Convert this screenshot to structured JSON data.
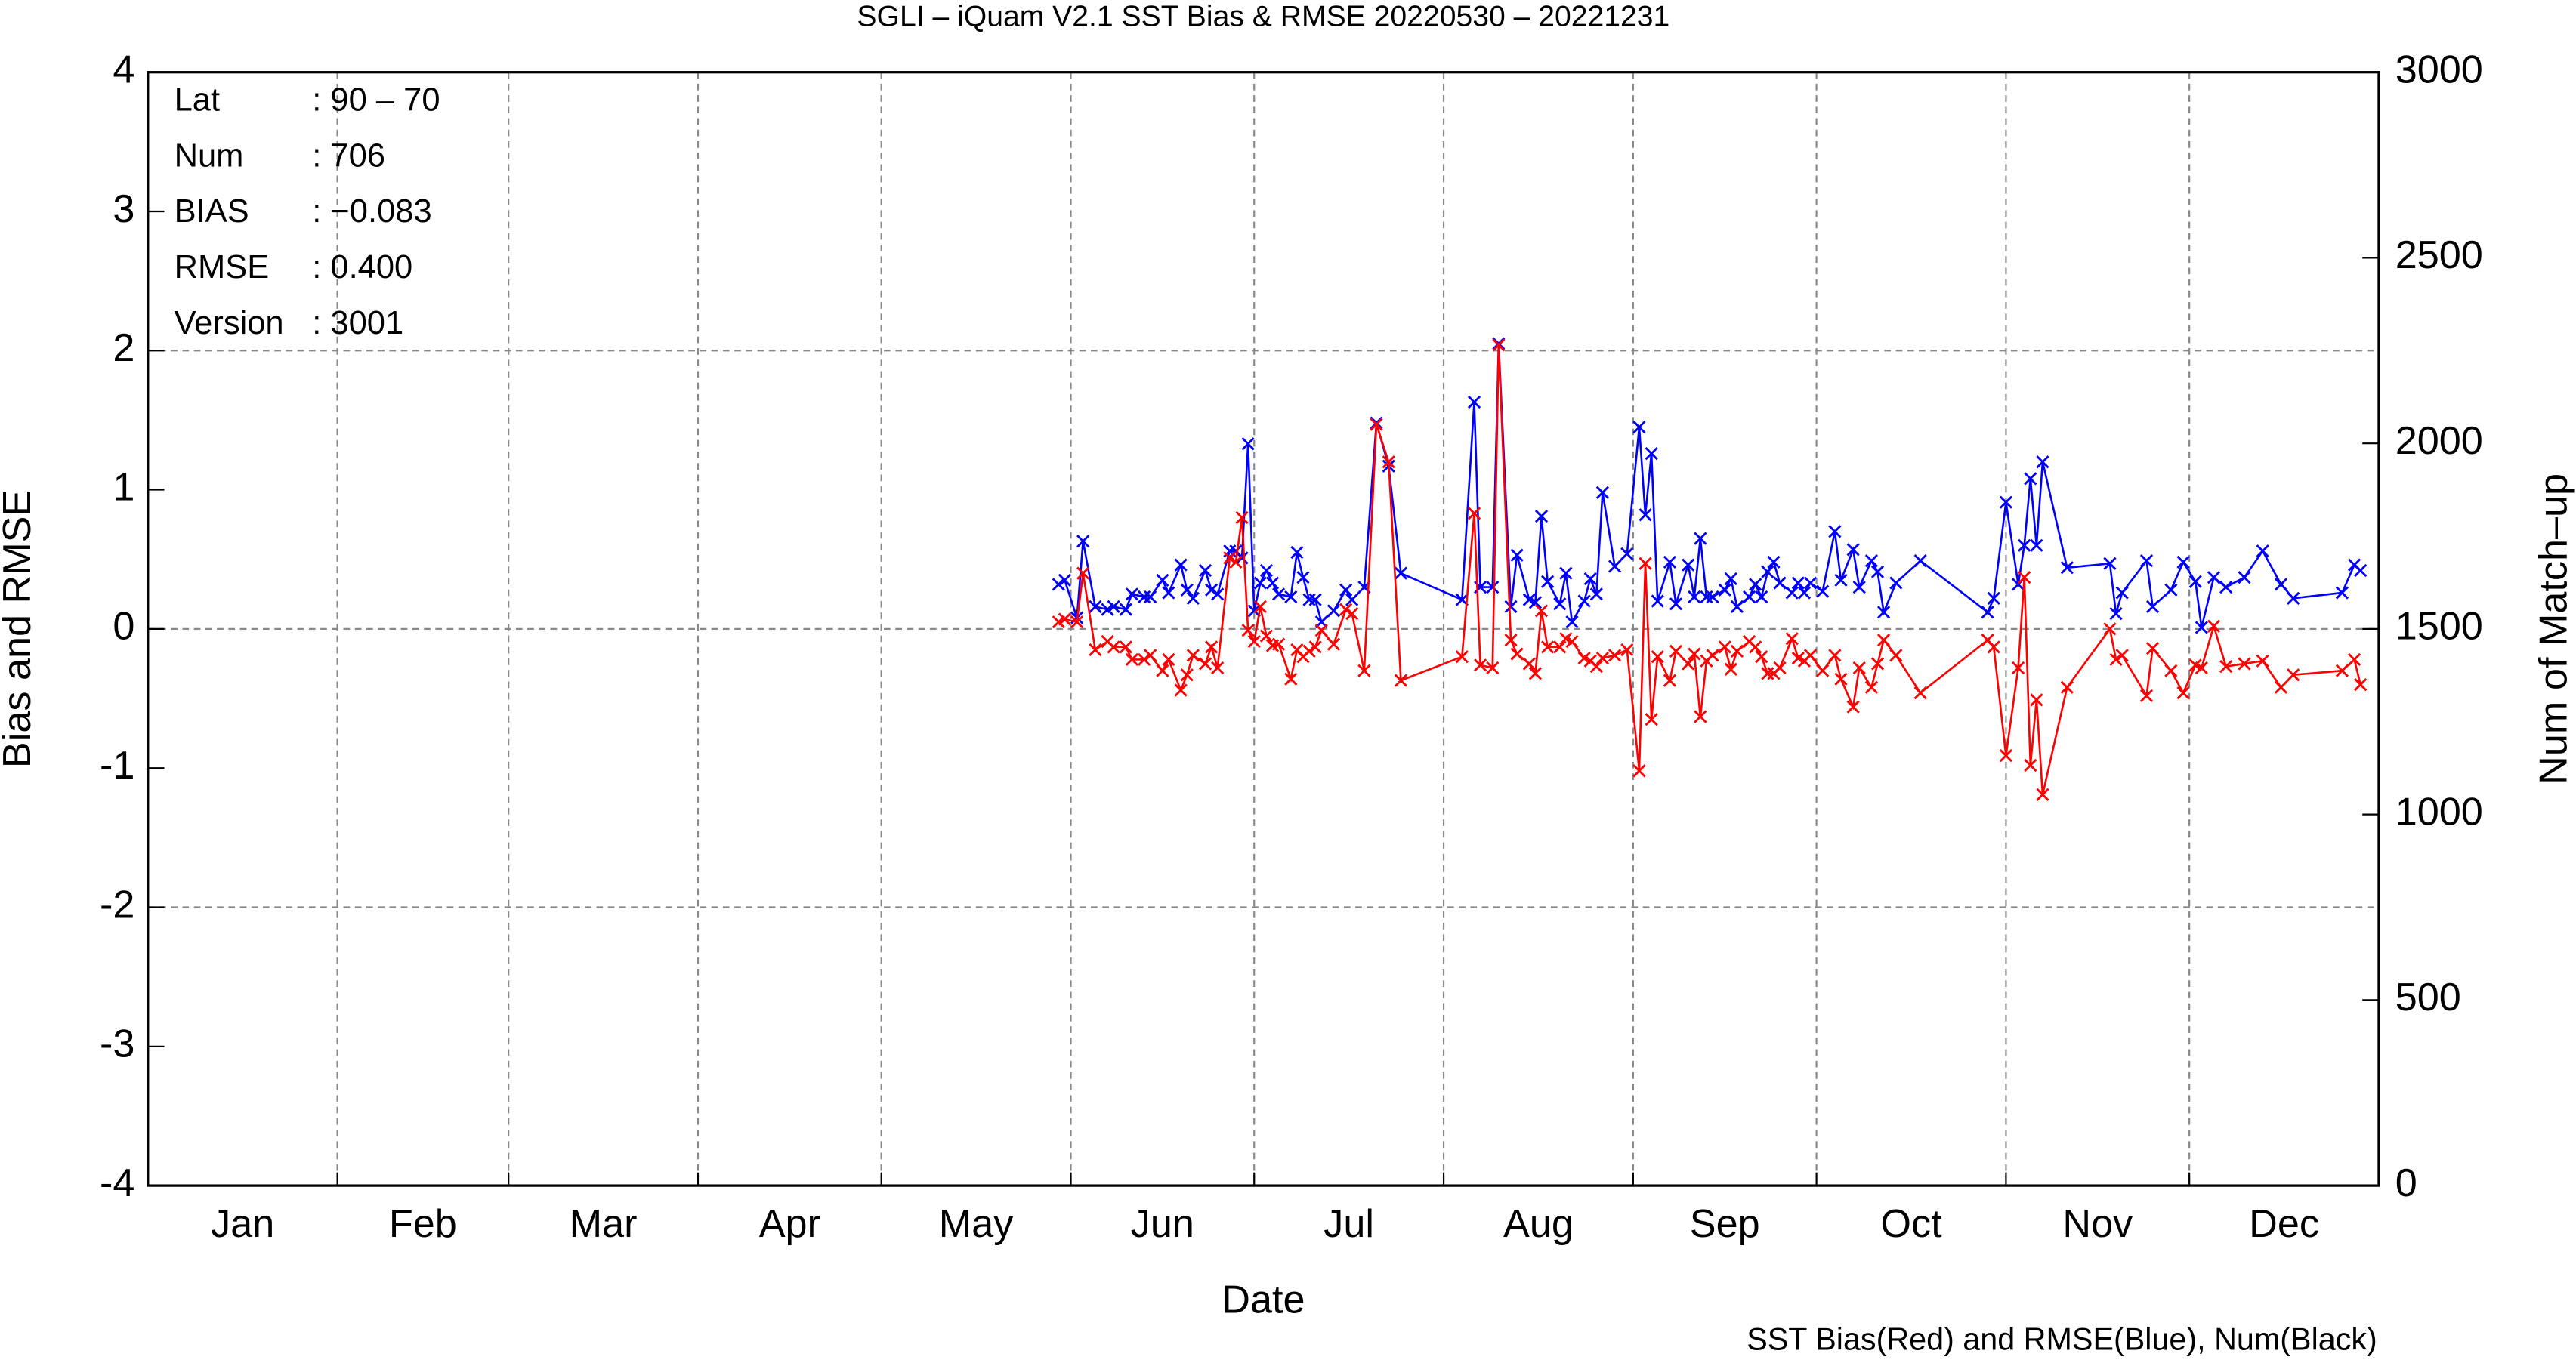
{
  "chart_data": {
    "type": "line",
    "title": "SGLI – iQuam V2.1 SST Bias & RMSE 20220530 – 20221231",
    "x_label": "Date",
    "y_label": "Bias and RMSE",
    "y2_label": "Num of Match–up",
    "footnote": "SST Bias(Red) and RMSE(Blue), Num(Black)",
    "info": [
      {
        "label": "Lat",
        "value": ": 90 – 70"
      },
      {
        "label": "Num",
        "value": ": 706"
      },
      {
        "label": "BIAS",
        "value": ": −0.083"
      },
      {
        "label": "RMSE",
        "value": ": 0.400"
      },
      {
        "label": "Version",
        "value": ": 3001"
      }
    ],
    "xlim": [
      1,
      366
    ],
    "xticks": [
      {
        "value": 1,
        "label": "Jan"
      },
      {
        "value": 32,
        "label": "Feb"
      },
      {
        "value": 60,
        "label": "Mar"
      },
      {
        "value": 91,
        "label": "Apr"
      },
      {
        "value": 121,
        "label": "May"
      },
      {
        "value": 152,
        "label": "Jun"
      },
      {
        "value": 182,
        "label": "Jul"
      },
      {
        "value": 213,
        "label": "Aug"
      },
      {
        "value": 244,
        "label": "Sep"
      },
      {
        "value": 274,
        "label": "Oct"
      },
      {
        "value": 305,
        "label": "Nov"
      },
      {
        "value": 335,
        "label": "Dec"
      }
    ],
    "ylim": [
      -4,
      4
    ],
    "yticks": [
      -4,
      -3,
      -2,
      -1,
      0,
      1,
      2,
      3,
      4
    ],
    "grid_yticks": [
      -2,
      0,
      2
    ],
    "y2lim": [
      0,
      3000
    ],
    "y2ticks": [
      0,
      500,
      1000,
      1500,
      2000,
      2500,
      3000
    ],
    "x": [
      150,
      151,
      153,
      154,
      156,
      158,
      159,
      161,
      162,
      164,
      165,
      167,
      168,
      170,
      171,
      172,
      174,
      175,
      176,
      178,
      179,
      180,
      181,
      182,
      183,
      184,
      185,
      186,
      188,
      189,
      190,
      191,
      192,
      193,
      195,
      197,
      198,
      200,
      202,
      204,
      206,
      216,
      218,
      219,
      221,
      222,
      224,
      225,
      227,
      228,
      229,
      230,
      232,
      233,
      234,
      236,
      237,
      238,
      239,
      241,
      243,
      245,
      246,
      247,
      248,
      250,
      251,
      253,
      254,
      255,
      256,
      257,
      259,
      260,
      261,
      263,
      264,
      265,
      266,
      267,
      268,
      270,
      271,
      272,
      273,
      275,
      277,
      278,
      280,
      281,
      283,
      284,
      285,
      287,
      291,
      302,
      303,
      305,
      307,
      308,
      309,
      310,
      311,
      315,
      322,
      323,
      324,
      328,
      329,
      332,
      334,
      336,
      337,
      339,
      341,
      344,
      347,
      350,
      352,
      360,
      362,
      363
    ],
    "series": [
      {
        "name": "RMSE",
        "color": "#0000ff",
        "values": [
          0.32,
          0.35,
          0.08,
          0.63,
          0.16,
          0.14,
          0.16,
          0.14,
          0.25,
          0.23,
          0.23,
          0.35,
          0.26,
          0.46,
          0.28,
          0.22,
          0.42,
          0.28,
          0.25,
          0.56,
          0.56,
          0.51,
          1.33,
          0.13,
          0.33,
          0.42,
          0.33,
          0.25,
          0.23,
          0.55,
          0.37,
          0.21,
          0.21,
          0.05,
          0.13,
          0.28,
          0.21,
          0.3,
          1.48,
          1.17,
          0.4,
          0.21,
          1.63,
          0.3,
          0.3,
          2.05,
          0.16,
          0.53,
          0.21,
          0.19,
          0.81,
          0.34,
          0.18,
          0.4,
          0.05,
          0.2,
          0.36,
          0.25,
          0.98,
          0.45,
          0.54,
          1.45,
          0.82,
          1.26,
          0.2,
          0.48,
          0.18,
          0.46,
          0.23,
          0.65,
          0.23,
          0.23,
          0.28,
          0.36,
          0.16,
          0.23,
          0.32,
          0.23,
          0.41,
          0.48,
          0.33,
          0.26,
          0.33,
          0.26,
          0.33,
          0.27,
          0.7,
          0.35,
          0.57,
          0.3,
          0.49,
          0.41,
          0.12,
          0.33,
          0.49,
          0.12,
          0.22,
          0.91,
          0.32,
          0.6,
          1.08,
          0.6,
          1.2,
          0.44,
          0.47,
          0.11,
          0.26,
          0.49,
          0.16,
          0.28,
          0.48,
          0.34,
          0.01,
          0.37,
          0.3,
          0.37,
          0.56,
          0.32,
          0.22,
          0.26,
          0.46,
          0.42
        ]
      },
      {
        "name": "Bias",
        "color": "#ff0000",
        "values": [
          0.05,
          0.07,
          0.05,
          0.4,
          -0.15,
          -0.09,
          -0.13,
          -0.13,
          -0.22,
          -0.22,
          -0.19,
          -0.3,
          -0.22,
          -0.44,
          -0.33,
          -0.19,
          -0.25,
          -0.13,
          -0.28,
          0.51,
          0.48,
          0.8,
          -0.01,
          -0.09,
          0.16,
          -0.05,
          -0.12,
          -0.11,
          -0.36,
          -0.15,
          -0.2,
          -0.16,
          -0.13,
          -0.01,
          -0.11,
          0.14,
          0.11,
          -0.3,
          1.47,
          1.2,
          -0.37,
          -0.2,
          0.83,
          -0.26,
          -0.28,
          2.04,
          -0.08,
          -0.18,
          -0.25,
          -0.32,
          0.13,
          -0.13,
          -0.13,
          -0.07,
          -0.09,
          -0.21,
          -0.23,
          -0.27,
          -0.21,
          -0.19,
          -0.15,
          -1.02,
          0.47,
          -0.65,
          -0.2,
          -0.37,
          -0.16,
          -0.25,
          -0.18,
          -0.63,
          -0.23,
          -0.19,
          -0.13,
          -0.29,
          -0.16,
          -0.09,
          -0.13,
          -0.2,
          -0.32,
          -0.32,
          -0.28,
          -0.07,
          -0.21,
          -0.23,
          -0.19,
          -0.3,
          -0.19,
          -0.36,
          -0.56,
          -0.28,
          -0.42,
          -0.25,
          -0.08,
          -0.19,
          -0.46,
          -0.08,
          -0.13,
          -0.91,
          -0.28,
          0.37,
          -0.98,
          -0.51,
          -1.19,
          -0.42,
          0.0,
          -0.22,
          -0.19,
          -0.48,
          -0.14,
          -0.3,
          -0.46,
          -0.26,
          -0.28,
          0.02,
          -0.27,
          -0.25,
          -0.23,
          -0.42,
          -0.33,
          -0.3,
          -0.22,
          -0.4
        ]
      }
    ]
  }
}
